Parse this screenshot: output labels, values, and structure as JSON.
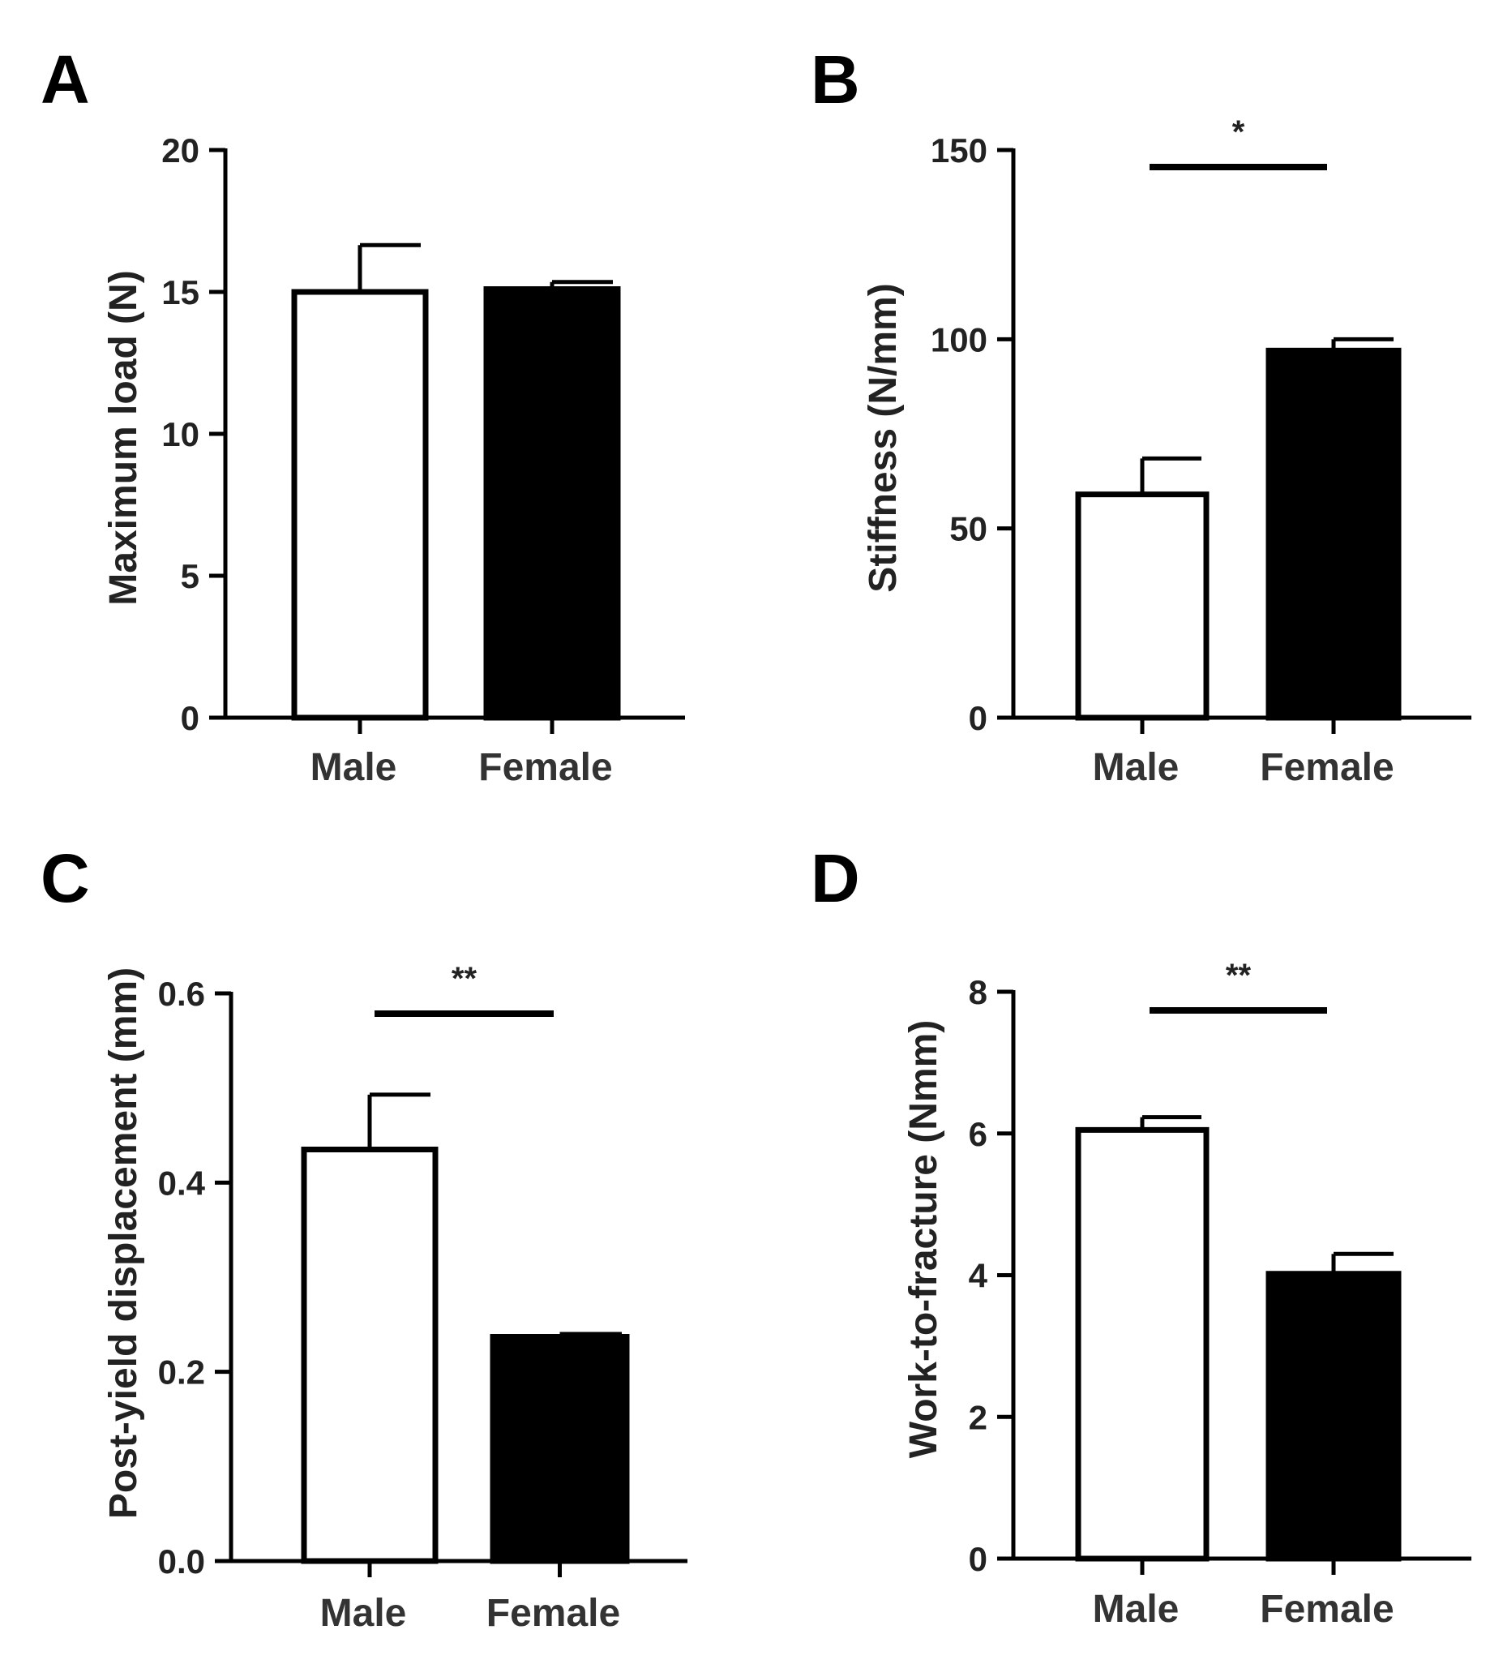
{
  "colors": {
    "male_fill": "#ffffff",
    "female_fill": "#000000",
    "stroke": "#000000"
  },
  "chart_data": [
    {
      "panel": "A",
      "type": "bar",
      "categories": [
        "Male",
        "Female"
      ],
      "values": [
        15.0,
        15.1
      ],
      "errors": [
        1.65,
        0.25
      ],
      "ylabel": "Maximum load (N)",
      "ylim": [
        0,
        20
      ],
      "yticks": [
        "0",
        "5",
        "10",
        "15",
        "20"
      ],
      "significance": ""
    },
    {
      "panel": "B",
      "type": "bar",
      "categories": [
        "Male",
        "Female"
      ],
      "values": [
        59,
        97
      ],
      "errors": [
        9.5,
        3
      ],
      "ylabel": "Stiffness (N/mm)",
      "ylim": [
        0,
        150
      ],
      "yticks": [
        "0",
        "50",
        "100",
        "150"
      ],
      "significance": "*"
    },
    {
      "panel": "C",
      "type": "bar",
      "categories": [
        "Male",
        "Female"
      ],
      "values": [
        0.435,
        0.237
      ],
      "errors": [
        0.058,
        0.003
      ],
      "ylabel": "Post-yield displacement (mm)",
      "ylim": [
        0,
        0.6
      ],
      "yticks": [
        "0.0",
        "0.2",
        "0.4",
        "0.6"
      ],
      "significance": "**"
    },
    {
      "panel": "D",
      "type": "bar",
      "categories": [
        "Male",
        "Female"
      ],
      "values": [
        6.05,
        4.02
      ],
      "errors": [
        0.18,
        0.28
      ],
      "ylabel": "Work-to-fracture (Nmm)",
      "ylim": [
        0,
        8
      ],
      "yticks": [
        "0",
        "2",
        "4",
        "6",
        "8"
      ],
      "significance": "**"
    }
  ]
}
